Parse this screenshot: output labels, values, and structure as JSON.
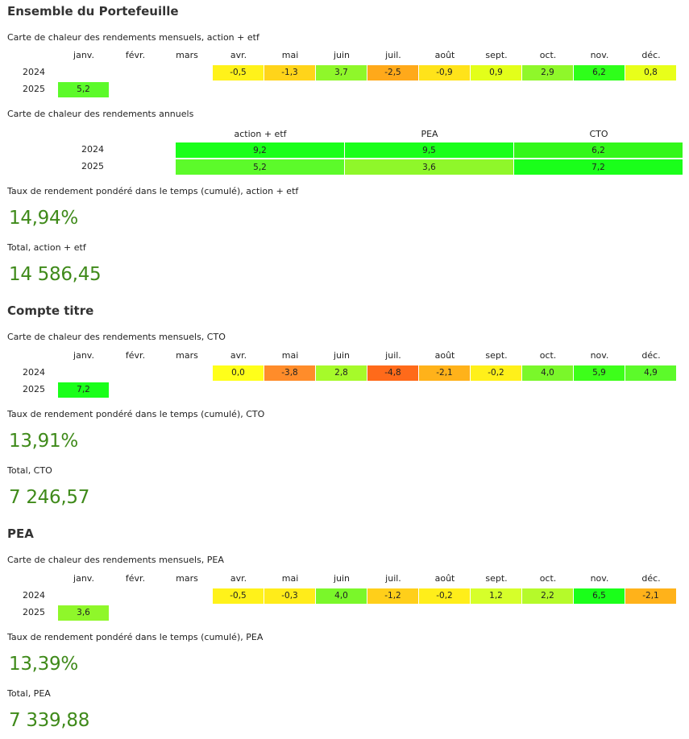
{
  "sections": {
    "all": {
      "title": "Ensemble du Portefeuille",
      "monthly_caption": "Carte de chaleur des rendements mensuels, action + etf",
      "annual_caption": "Carte de chaleur des rendements annuels",
      "twr_caption": "Taux de rendement pondéré dans le temps (cumulé), action + etf",
      "twr_value": "14,94%",
      "total_caption": "Total, action + etf",
      "total_value": "14 586,45"
    },
    "cto": {
      "title": "Compte titre",
      "monthly_caption": "Carte de chaleur des rendements mensuels, CTO",
      "twr_caption": "Taux de rendement pondéré dans le temps (cumulé), CTO",
      "twr_value": "13,91%",
      "total_caption": "Total, CTO",
      "total_value": "7 246,57"
    },
    "pea": {
      "title": "PEA",
      "monthly_caption": "Carte de chaleur des rendements mensuels, PEA",
      "twr_caption": "Taux de rendement pondéré dans le temps (cumulé), PEA",
      "twr_value": "13,39%",
      "total_caption": "Total, PEA",
      "total_value": "7 339,88"
    }
  },
  "months": [
    "janv.",
    "févr.",
    "mars",
    "avr.",
    "mai",
    "juin",
    "juil.",
    "août",
    "sept.",
    "oct.",
    "nov.",
    "déc."
  ],
  "years": [
    "2024",
    "2025"
  ],
  "heatmaps": {
    "all": {
      "2024": [
        null,
        null,
        null,
        "-0,5",
        "-1,3",
        "3,7",
        "-2,5",
        "-0,9",
        "0,9",
        "2,9",
        "6,2",
        "0,8"
      ],
      "2025": [
        "5,2",
        null,
        null,
        null,
        null,
        null,
        null,
        null,
        null,
        null,
        null,
        null
      ],
      "colors_2024": [
        null,
        null,
        null,
        "#fff21a",
        "#ffd41a",
        "#8ff72a",
        "#ffa91a",
        "#ffe31a",
        "#e3ff1a",
        "#8ff72a",
        "#2eff1a",
        "#e8ff1a"
      ],
      "colors_2025": [
        "#5cfa2a",
        null,
        null,
        null,
        null,
        null,
        null,
        null,
        null,
        null,
        null,
        null
      ]
    },
    "cto": {
      "2024": [
        null,
        null,
        null,
        "0,0",
        "-3,8",
        "2,8",
        "-4,8",
        "-2,1",
        "-0,2",
        "4,0",
        "5,9",
        "4,9"
      ],
      "2025": [
        "7,2",
        null,
        null,
        null,
        null,
        null,
        null,
        null,
        null,
        null,
        null,
        null
      ],
      "colors_2024": [
        null,
        null,
        null,
        "#ffff1a",
        "#ff8c2a",
        "#a6fa2a",
        "#ff6a1a",
        "#ffb21a",
        "#fff01a",
        "#7af72a",
        "#3dff1a",
        "#5cfa2a"
      ],
      "colors_2025": [
        "#1aff1a",
        null,
        null,
        null,
        null,
        null,
        null,
        null,
        null,
        null,
        null,
        null
      ]
    },
    "pea": {
      "2024": [
        null,
        null,
        null,
        "-0,5",
        "-0,3",
        "4,0",
        "-1,2",
        "-0,2",
        "1,2",
        "2,2",
        "6,5",
        "-2,1"
      ],
      "2025": [
        "3,6",
        null,
        null,
        null,
        null,
        null,
        null,
        null,
        null,
        null,
        null,
        null
      ],
      "colors_2024": [
        null,
        null,
        null,
        "#fff21a",
        "#ffec1a",
        "#7af72a",
        "#ffcf1a",
        "#ffee1a",
        "#d6ff2a",
        "#b5fa2a",
        "#1aff1a",
        "#ffb21a"
      ],
      "colors_2025": [
        "#8ff72a",
        null,
        null,
        null,
        null,
        null,
        null,
        null,
        null,
        null,
        null,
        null
      ]
    }
  },
  "annual": {
    "columns": [
      "action + etf",
      "PEA",
      "CTO"
    ],
    "rows": [
      {
        "year": "2024",
        "values": [
          "9,2",
          "9,5",
          "6,2"
        ],
        "colors": [
          "#1aff1a",
          "#1aff1a",
          "#33f71a"
        ]
      },
      {
        "year": "2025",
        "values": [
          "5,2",
          "3,6",
          "7,2"
        ],
        "colors": [
          "#5cfa2a",
          "#8ff72a",
          "#1aff1a"
        ]
      }
    ]
  }
}
